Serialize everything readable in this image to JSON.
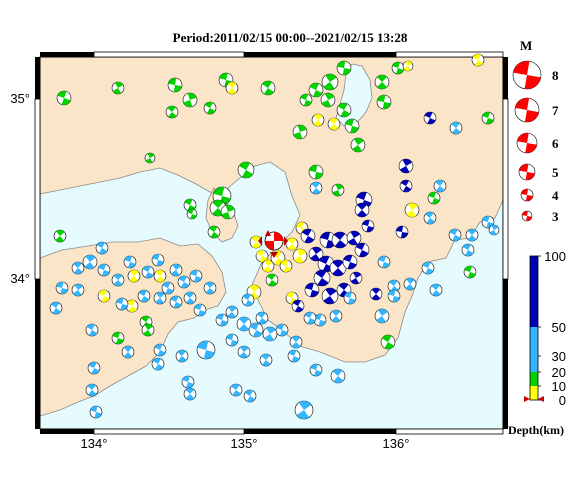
{
  "title": "Period:2011/02/15 00:00--2021/02/15 13:28",
  "map": {
    "lon_ticks": [
      "134°",
      "135°",
      "136°"
    ],
    "lat_ticks": [
      "35°",
      "34°"
    ],
    "colors": {
      "land": "#fbe5c8",
      "sea": "#e6fbfd",
      "coast": "#8a8a8a",
      "frame": "#000000"
    }
  },
  "magnitude_legend": {
    "title": "M",
    "items": [
      {
        "label": "8"
      },
      {
        "label": "7"
      },
      {
        "label": "6"
      },
      {
        "label": "5"
      },
      {
        "label": "4"
      },
      {
        "label": "3"
      }
    ]
  },
  "depth_scale": {
    "title": "Depth(km)",
    "ticks": [
      {
        "label": "100",
        "value": 100
      },
      {
        "label": "50",
        "value": 50
      },
      {
        "label": "30",
        "value": 30
      },
      {
        "label": "20",
        "value": 20
      },
      {
        "label": "10",
        "value": 10
      },
      {
        "label": "0",
        "value": 0
      }
    ],
    "bands": [
      {
        "from": 0,
        "to": 10,
        "color": "#ffff00"
      },
      {
        "from": 10,
        "to": 20,
        "color": "#00d200"
      },
      {
        "from": 20,
        "to": 50,
        "color": "#33b5ff"
      },
      {
        "from": 50,
        "to": 100,
        "color": "#0000b4"
      }
    ]
  }
}
